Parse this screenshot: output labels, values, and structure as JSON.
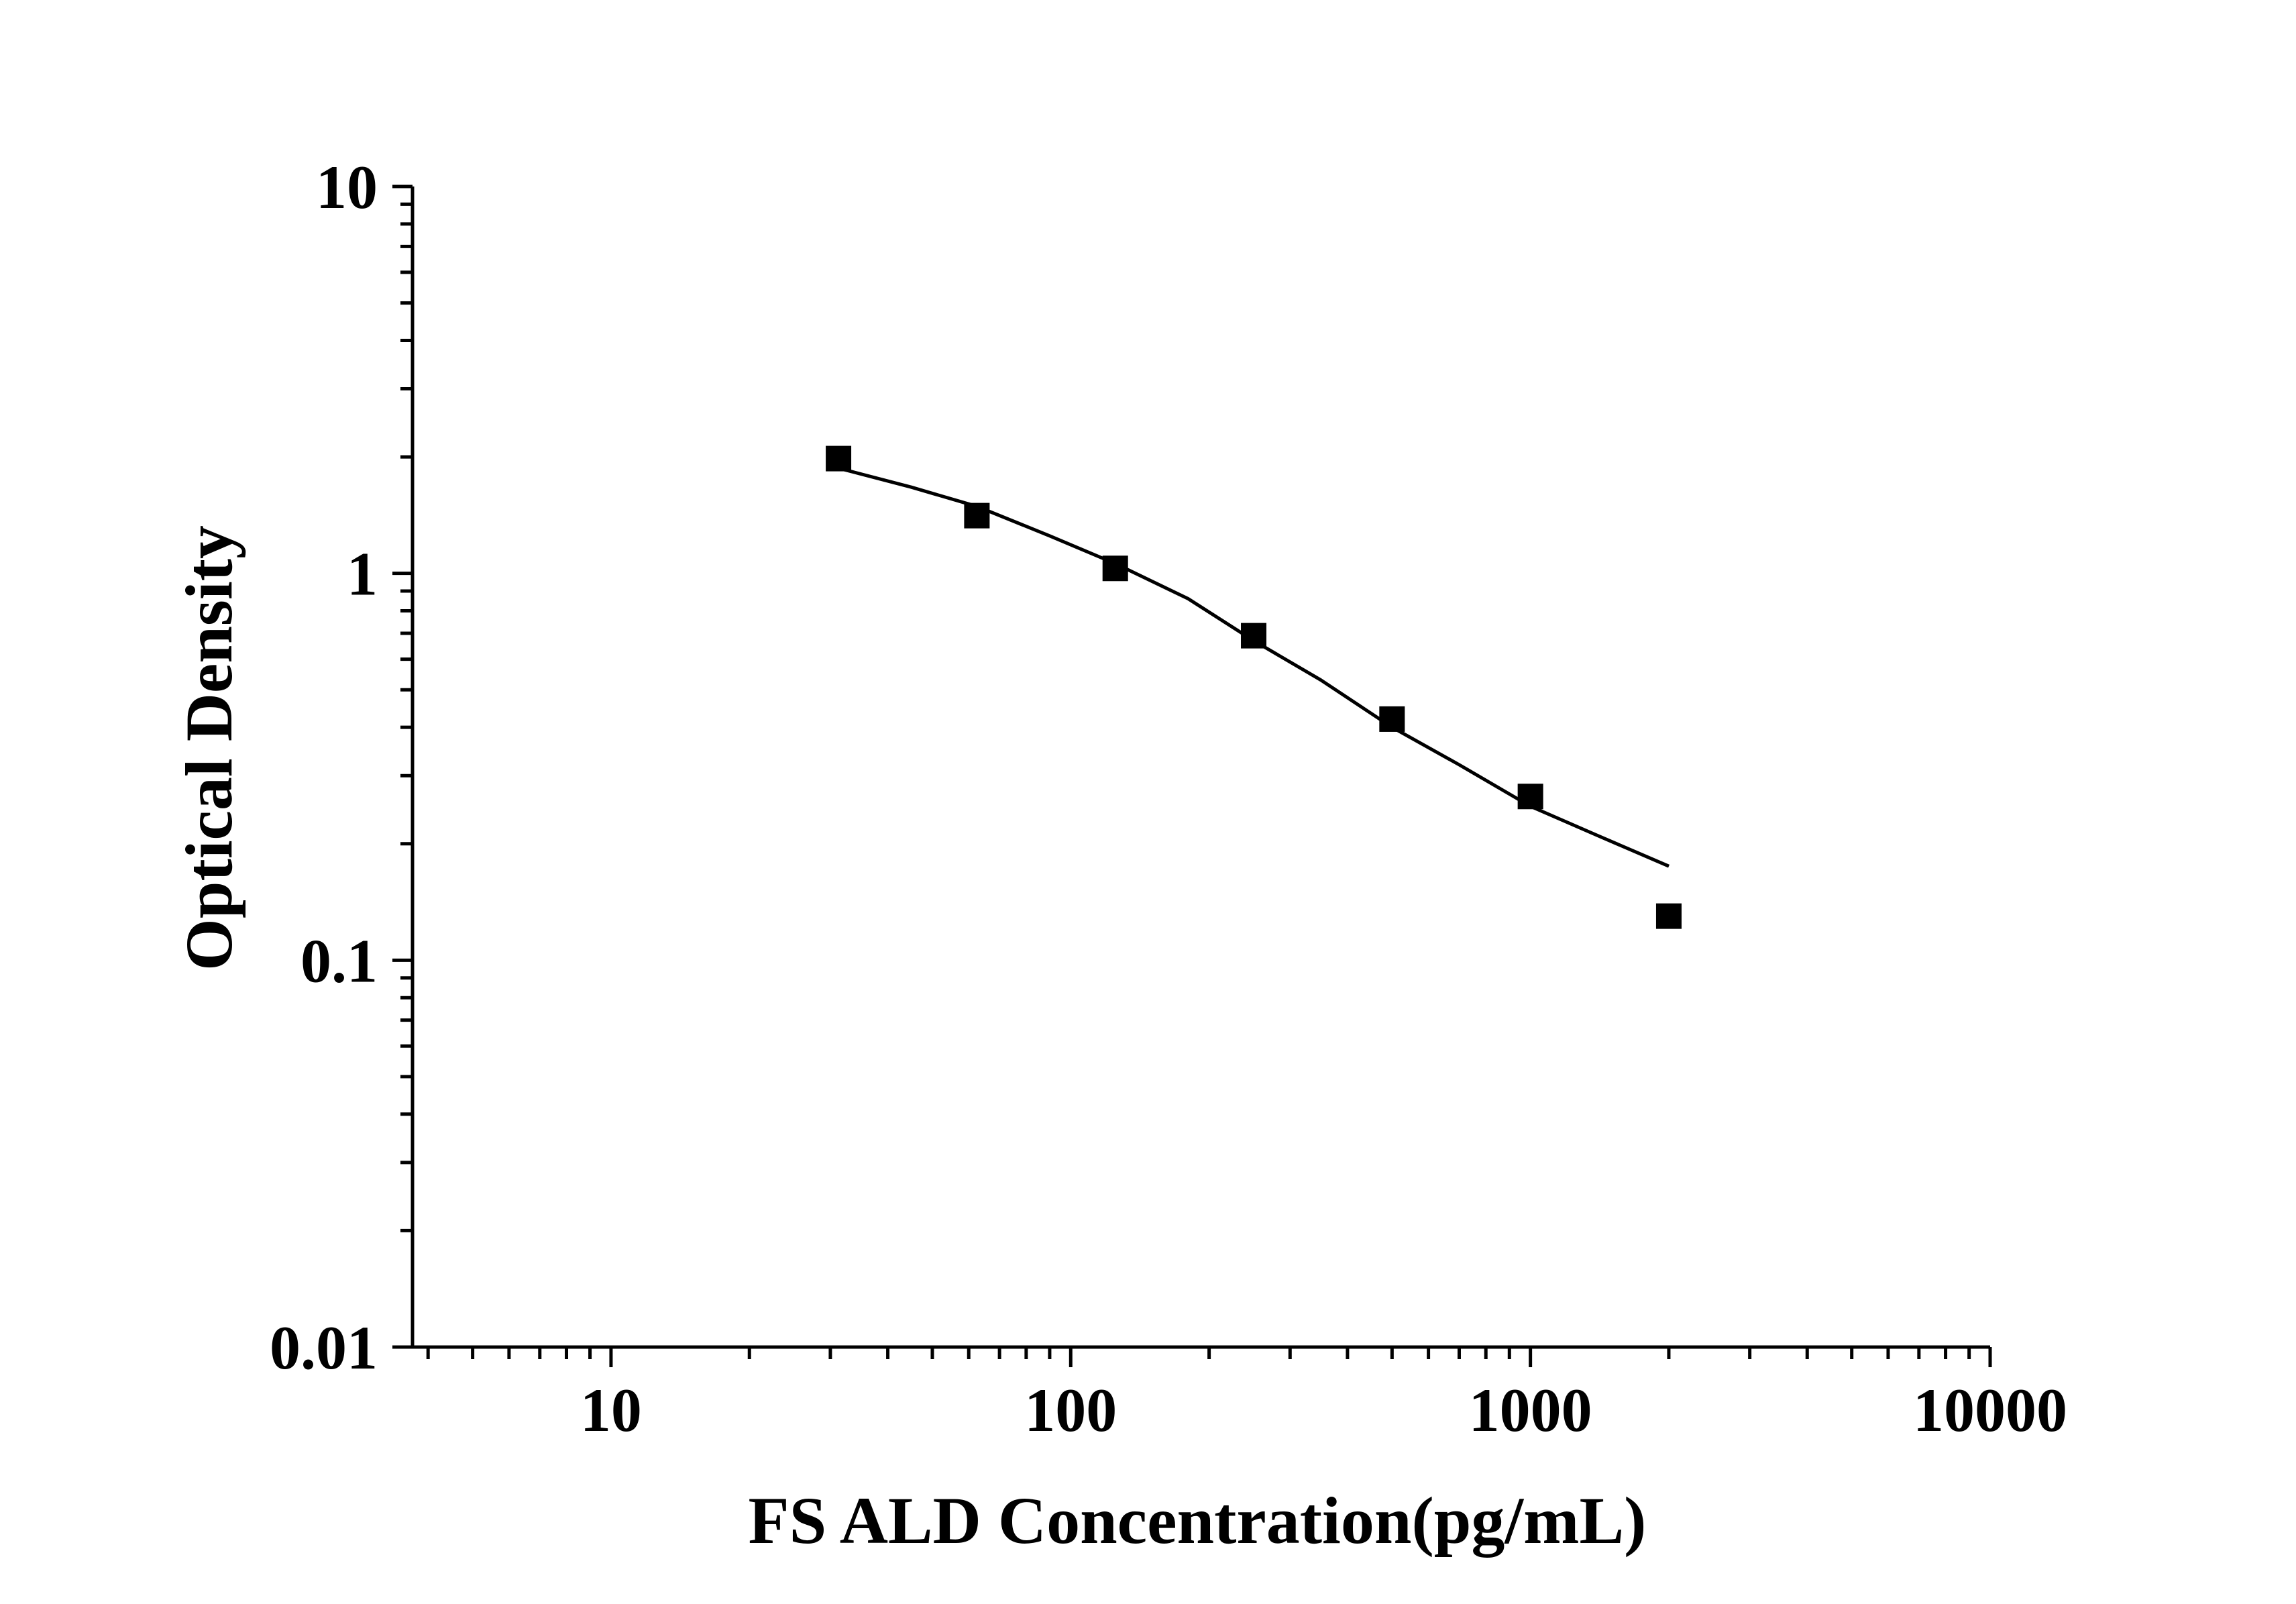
{
  "chart_data": {
    "type": "scatter",
    "xlabel": "FS ALD Concentration(pg/mL)",
    "ylabel": "Optical Density",
    "x_scale": "log",
    "y_scale": "log",
    "xlim": [
      3.7,
      10000
    ],
    "ylim": [
      0.01,
      10
    ],
    "x_ticks": [
      10,
      100,
      1000,
      10000
    ],
    "x_tick_labels": [
      "10",
      "100",
      "1000",
      "10000"
    ],
    "y_ticks": [
      0.01,
      0.1,
      1,
      10
    ],
    "y_tick_labels": [
      "0.01",
      "0.1",
      "1",
      "10"
    ],
    "grid": false,
    "series": [
      {
        "kind": "points",
        "marker": "square",
        "color": "#000000",
        "x": [
          31.25,
          62.5,
          125,
          250,
          500,
          1000,
          2000
        ],
        "y": [
          1.98,
          1.41,
          1.03,
          0.69,
          0.42,
          0.265,
          0.13
        ]
      },
      {
        "kind": "fit-line",
        "color": "#000000",
        "x": [
          31.25,
          45,
          62.5,
          90,
          125,
          180,
          250,
          350,
          500,
          700,
          1000,
          1400,
          2000
        ],
        "y": [
          1.87,
          1.67,
          1.49,
          1.25,
          1.06,
          0.86,
          0.67,
          0.53,
          0.4,
          0.32,
          0.25,
          0.21,
          0.175
        ]
      }
    ]
  }
}
